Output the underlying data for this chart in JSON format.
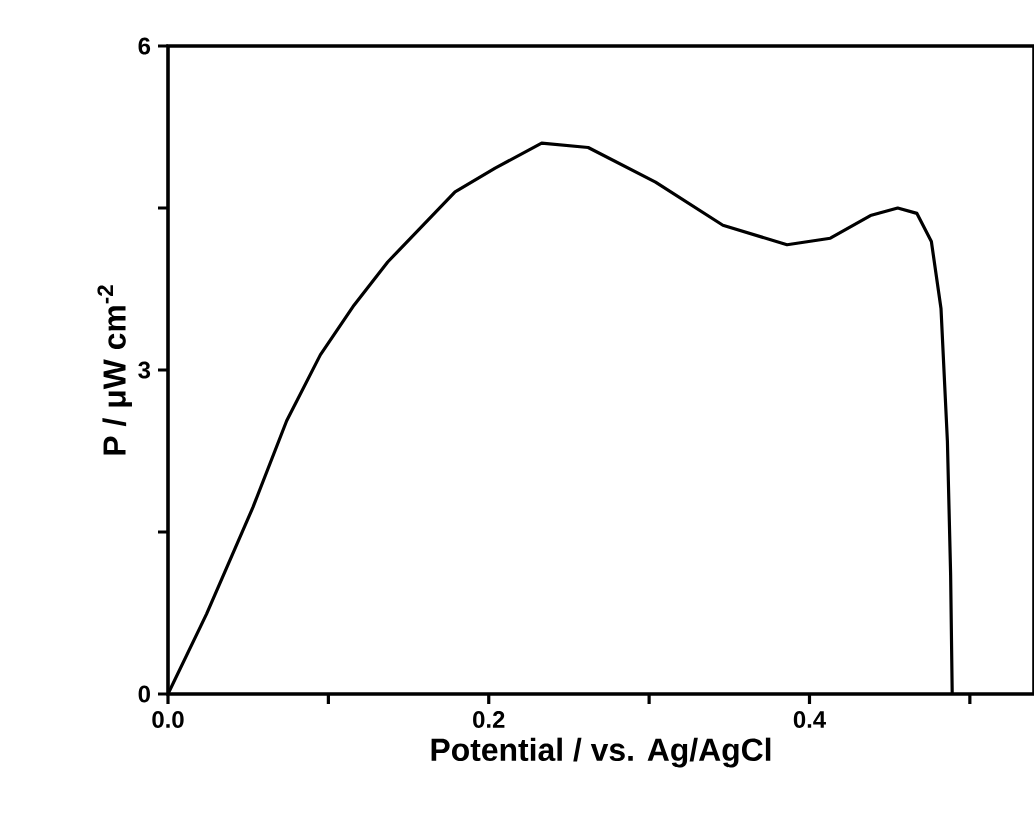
{
  "chart_data": {
    "type": "line",
    "xlabel": "Potential / vs. Ag/AgCl",
    "ylabel": "P / μW cm$^{-2}$",
    "x": [
      0,
      0.024,
      0.053,
      0.074,
      0.095,
      0.116,
      0.137,
      0.179,
      0.204,
      0.233,
      0.262,
      0.304,
      0.346,
      0.386,
      0.413,
      0.438,
      0.455,
      0.467,
      0.476,
      0.482,
      0.486,
      0.488,
      0.489
    ],
    "series": [
      {
        "color": "#000000",
        "values": [
          0,
          0.74,
          1.73,
          2.53,
          3.14,
          3.6,
          4.0,
          4.65,
          4.87,
          5.1,
          5.06,
          4.74,
          4.34,
          4.16,
          4.22,
          4.43,
          4.5,
          4.45,
          4.19,
          3.57,
          2.34,
          1.11,
          0
        ]
      }
    ],
    "xlim": [
      0,
      0.54
    ],
    "ylim": [
      0,
      6
    ],
    "xticks": [
      {
        "value": 0,
        "label": "0.0"
      },
      {
        "value": 0.1,
        "label": null
      },
      {
        "value": 0.2,
        "label": "0.2"
      },
      {
        "value": 0.3,
        "label": null
      },
      {
        "value": 0.4,
        "label": "0.4"
      },
      {
        "value": 0.5,
        "label": null
      }
    ],
    "yticks": [
      0,
      {
        "value": 1.5,
        "label": null
      },
      3,
      {
        "value": 4.5,
        "label": null
      },
      6
    ],
    "marker": "none",
    "line_style": "solid"
  }
}
